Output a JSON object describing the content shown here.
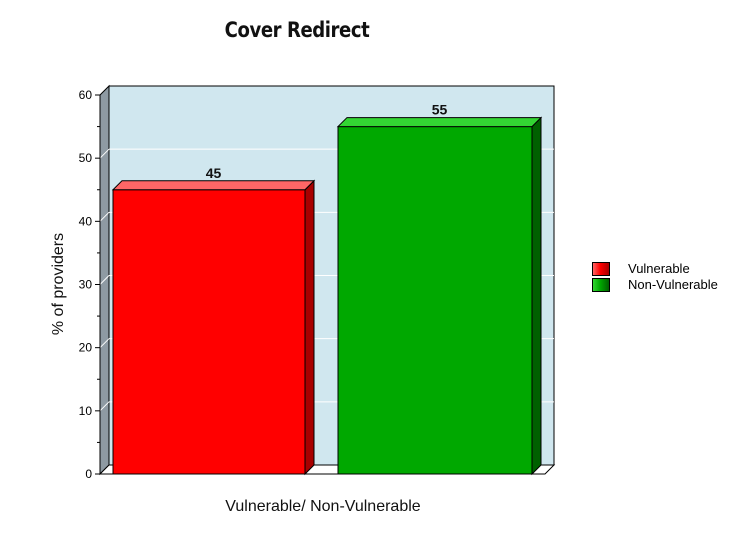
{
  "chart_data": {
    "type": "bar",
    "title": "Cover Redirect",
    "xlabel": "Vulnerable/ Non-Vulnerable",
    "ylabel": "% of providers",
    "ylim": [
      0,
      60
    ],
    "yticks": [
      0,
      10,
      20,
      30,
      40,
      50,
      60
    ],
    "grid": true,
    "legend_position": "right",
    "plot_background": "#d0e7ef",
    "series": [
      {
        "name": "Vulnerable",
        "values": [
          45
        ],
        "color": "#ff0000",
        "dark": "#a80000",
        "light": "#ff6666"
      },
      {
        "name": "Non-Vulnerable",
        "values": [
          55
        ],
        "color": "#00a800",
        "dark": "#006000",
        "light": "#33d633"
      }
    ]
  }
}
